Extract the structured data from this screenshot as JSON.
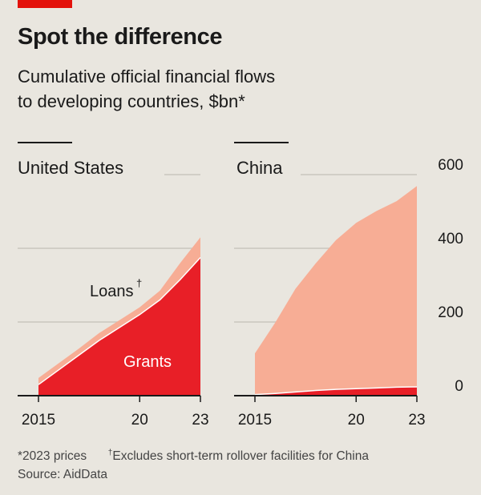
{
  "header": {
    "title": "Spot the difference",
    "subtitle_line1": "Cumulative official financial flows",
    "subtitle_line2": "to developing countries, $bn*"
  },
  "colors": {
    "accent_red": "#e3120b",
    "grants": "#e81f27",
    "loans": "#f7ad95",
    "grid": "#c9c5bd",
    "background": "#e9e6df"
  },
  "chart_data": [
    {
      "type": "area",
      "title": "United States",
      "stacked": true,
      "x": [
        2015,
        2016,
        2017,
        2018,
        2019,
        2020,
        2021,
        2022,
        2023
      ],
      "x_tick_labels": [
        "2015",
        "20",
        "23"
      ],
      "y_ticks": [
        0,
        200,
        400,
        600
      ],
      "ylim": [
        0,
        600
      ],
      "series": [
        {
          "name": "Grants",
          "values": [
            30,
            70,
            110,
            150,
            185,
            220,
            260,
            315,
            375
          ]
        },
        {
          "name": "Loans†",
          "values": [
            18,
            18,
            18,
            20,
            20,
            20,
            25,
            45,
            55
          ]
        }
      ]
    },
    {
      "type": "area",
      "title": "China",
      "stacked": true,
      "x": [
        2015,
        2016,
        2017,
        2018,
        2019,
        2020,
        2021,
        2022,
        2023
      ],
      "x_tick_labels": [
        "2015",
        "20",
        "23"
      ],
      "y_ticks": [
        0,
        200,
        400,
        600
      ],
      "y_tick_labels": [
        "0",
        "200",
        "400",
        "600"
      ],
      "ylim": [
        0,
        600
      ],
      "series": [
        {
          "name": "Grants",
          "values": [
            3,
            6,
            10,
            14,
            17,
            19,
            21,
            23,
            24
          ]
        },
        {
          "name": "Loans",
          "values": [
            112,
            192,
            280,
            345,
            405,
            450,
            480,
            505,
            545
          ]
        }
      ]
    }
  ],
  "labels": {
    "loans": "Loans",
    "dagger": "†",
    "grants": "Grants"
  },
  "footnotes": {
    "prices": "*2023 prices",
    "dagger": "†",
    "rollover": "Excludes short-term rollover facilities for China",
    "source": "Source: AidData"
  }
}
